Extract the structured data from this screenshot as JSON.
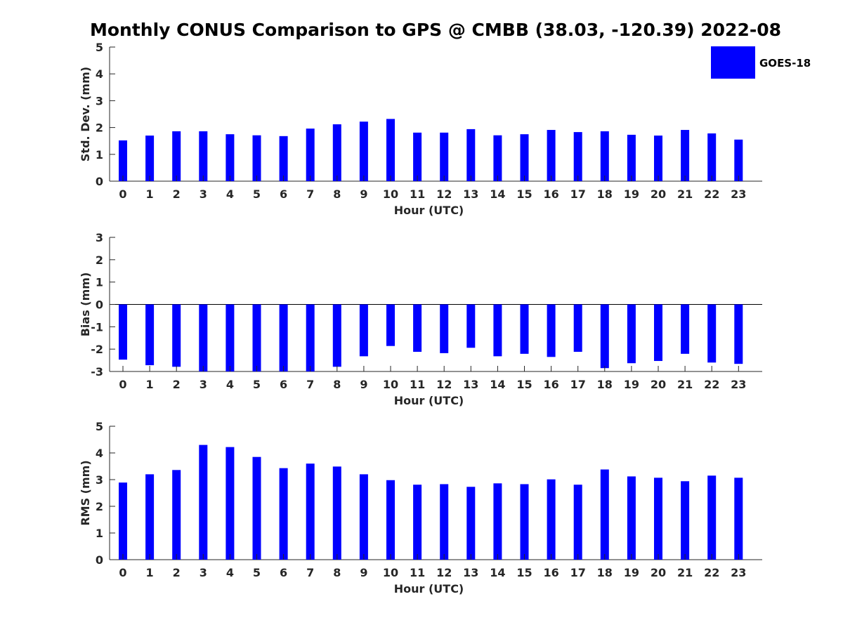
{
  "title": "Monthly CONUS Comparison to GPS @ CMBB (38.03, -120.39) 2022-08",
  "legend": {
    "label": "GOES-18",
    "color": "#0000ff"
  },
  "chart_data": [
    {
      "type": "bar",
      "series_name": "GOES-18",
      "xlabel": "Hour (UTC)",
      "ylabel": "Std. Dev. (mm)",
      "ylim": [
        0,
        5
      ],
      "yticks": [
        0,
        1,
        2,
        3,
        4,
        5
      ],
      "categories": [
        "0",
        "1",
        "2",
        "3",
        "4",
        "5",
        "6",
        "7",
        "8",
        "9",
        "10",
        "11",
        "12",
        "13",
        "14",
        "15",
        "16",
        "17",
        "18",
        "19",
        "20",
        "21",
        "22",
        "23"
      ],
      "values": [
        1.52,
        1.7,
        1.86,
        1.86,
        1.75,
        1.71,
        1.68,
        1.96,
        2.12,
        2.22,
        2.32,
        1.81,
        1.81,
        1.94,
        1.71,
        1.75,
        1.91,
        1.83,
        1.86,
        1.73,
        1.7,
        1.91,
        1.78,
        1.55
      ]
    },
    {
      "type": "bar",
      "series_name": "GOES-18",
      "xlabel": "Hour (UTC)",
      "ylabel": "Bias (mm)",
      "ylim": [
        -3,
        3
      ],
      "yticks": [
        -3,
        -2,
        -1,
        0,
        1,
        2,
        3
      ],
      "categories": [
        "0",
        "1",
        "2",
        "3",
        "4",
        "5",
        "6",
        "7",
        "8",
        "9",
        "10",
        "11",
        "12",
        "13",
        "14",
        "15",
        "16",
        "17",
        "18",
        "19",
        "20",
        "21",
        "22",
        "23"
      ],
      "values": [
        -2.47,
        -2.72,
        -2.79,
        -3.0,
        -3.0,
        -3.0,
        -3.0,
        -3.0,
        -2.79,
        -2.32,
        -1.86,
        -2.12,
        -2.18,
        -1.94,
        -2.32,
        -2.21,
        -2.35,
        -2.12,
        -2.85,
        -2.63,
        -2.53,
        -2.21,
        -2.6,
        -2.66
      ]
    },
    {
      "type": "bar",
      "series_name": "GOES-18",
      "xlabel": "Hour (UTC)",
      "ylabel": "RMS (mm)",
      "ylim": [
        0,
        5
      ],
      "yticks": [
        0,
        1,
        2,
        3,
        4,
        5
      ],
      "categories": [
        "0",
        "1",
        "2",
        "3",
        "4",
        "5",
        "6",
        "7",
        "8",
        "9",
        "10",
        "11",
        "12",
        "13",
        "14",
        "15",
        "16",
        "17",
        "18",
        "19",
        "20",
        "21",
        "22",
        "23"
      ],
      "values": [
        2.89,
        3.2,
        3.36,
        4.3,
        4.22,
        3.85,
        3.43,
        3.6,
        3.49,
        3.2,
        2.98,
        2.81,
        2.83,
        2.73,
        2.86,
        2.83,
        3.01,
        2.81,
        3.38,
        3.12,
        3.07,
        2.94,
        3.15,
        3.07
      ]
    }
  ]
}
